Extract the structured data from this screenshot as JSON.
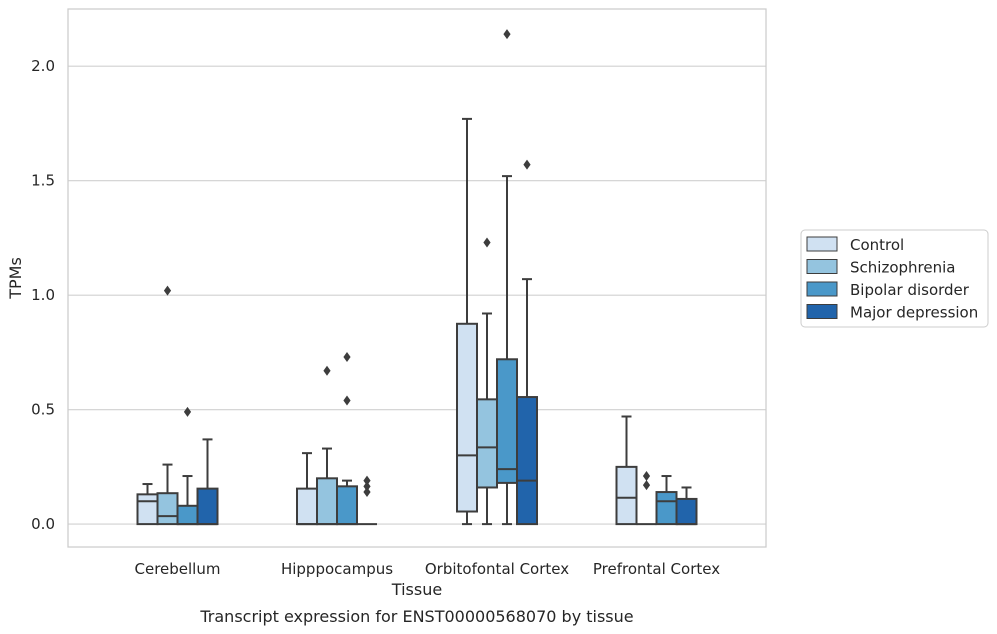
{
  "chart_data": {
    "type": "box",
    "xlabel": "Tissue",
    "ylabel": "TPMs",
    "caption": "Transcript expression for ENST00000568070 by tissue",
    "ylim": [
      -0.1,
      2.25
    ],
    "yticks": [
      0.0,
      0.5,
      1.0,
      1.5,
      2.0
    ],
    "ytick_labels": [
      "0.0",
      "0.5",
      "1.0",
      "1.5",
      "2.0"
    ],
    "grid": "horizontal",
    "legend_position": "right",
    "categories": [
      "Cerebellum",
      "Hipppocampus",
      "Orbitofontal Cortex",
      "Prefrontal Cortex"
    ],
    "series": [
      {
        "name": "Control",
        "color": "#d0e1f2",
        "boxes": [
          {
            "whislo": 0.0,
            "q1": 0.0,
            "med": 0.1,
            "q3": 0.13,
            "whishi": 0.175,
            "fliers": []
          },
          {
            "whislo": 0.0,
            "q1": 0.0,
            "med": 0.0,
            "q3": 0.155,
            "whishi": 0.31,
            "fliers": []
          },
          {
            "whislo": 0.0,
            "q1": 0.055,
            "med": 0.3,
            "q3": 0.875,
            "whishi": 1.77,
            "fliers": []
          },
          {
            "whislo": 0.0,
            "q1": 0.0,
            "med": 0.115,
            "q3": 0.25,
            "whishi": 0.47,
            "fliers": []
          }
        ]
      },
      {
        "name": "Schizophrenia",
        "color": "#94c4df",
        "boxes": [
          {
            "whislo": 0.0,
            "q1": 0.0,
            "med": 0.035,
            "q3": 0.135,
            "whishi": 0.26,
            "fliers": [
              1.02
            ]
          },
          {
            "whislo": 0.0,
            "q1": 0.0,
            "med": 0.0,
            "q3": 0.2,
            "whishi": 0.33,
            "fliers": [
              0.67
            ]
          },
          {
            "whislo": 0.0,
            "q1": 0.16,
            "med": 0.335,
            "q3": 0.545,
            "whishi": 0.92,
            "fliers": [
              1.23
            ]
          },
          {
            "whislo": 0.0,
            "q1": 0.0,
            "med": 0.0,
            "q3": 0.0,
            "whishi": 0.0,
            "fliers": [
              0.17,
              0.21
            ]
          }
        ]
      },
      {
        "name": "Bipolar disorder",
        "color": "#4a98c9",
        "boxes": [
          {
            "whislo": 0.0,
            "q1": 0.0,
            "med": 0.0,
            "q3": 0.08,
            "whishi": 0.21,
            "fliers": [
              0.49
            ]
          },
          {
            "whislo": 0.0,
            "q1": 0.0,
            "med": 0.0,
            "q3": 0.165,
            "whishi": 0.19,
            "fliers": [
              0.54,
              0.73
            ]
          },
          {
            "whislo": 0.0,
            "q1": 0.18,
            "med": 0.24,
            "q3": 0.72,
            "whishi": 1.52,
            "fliers": [
              2.14
            ]
          },
          {
            "whislo": 0.0,
            "q1": 0.0,
            "med": 0.1,
            "q3": 0.14,
            "whishi": 0.21,
            "fliers": []
          }
        ]
      },
      {
        "name": "Major depression",
        "color": "#2164ab",
        "boxes": [
          {
            "whislo": 0.0,
            "q1": 0.0,
            "med": 0.0,
            "q3": 0.155,
            "whishi": 0.37,
            "fliers": []
          },
          {
            "whislo": 0.0,
            "q1": 0.0,
            "med": 0.0,
            "q3": 0.0,
            "whishi": 0.0,
            "fliers": [
              0.14,
              0.165,
              0.19
            ]
          },
          {
            "whislo": 0.0,
            "q1": 0.0,
            "med": 0.19,
            "q3": 0.555,
            "whishi": 1.07,
            "fliers": [
              1.57
            ]
          },
          {
            "whislo": 0.0,
            "q1": 0.0,
            "med": 0.0,
            "q3": 0.11,
            "whishi": 0.16,
            "fliers": []
          }
        ]
      }
    ]
  }
}
